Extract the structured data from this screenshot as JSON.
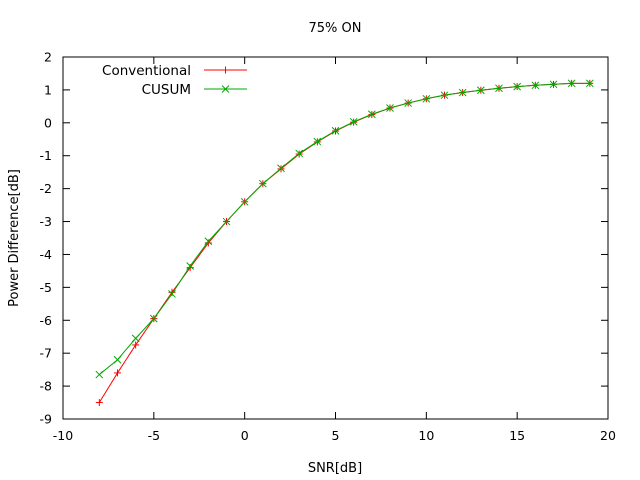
{
  "chart_data": {
    "type": "line",
    "title": "75% ON",
    "xlabel": "SNR[dB]",
    "ylabel": "Power Difference[dB]",
    "xlim": [
      -10,
      20
    ],
    "ylim": [
      -9,
      2
    ],
    "xticks": [
      -10,
      -5,
      0,
      5,
      10,
      15,
      20
    ],
    "yticks": [
      -9,
      -8,
      -7,
      -6,
      -5,
      -4,
      -3,
      -2,
      -1,
      0,
      1,
      2
    ],
    "xtick_labels": [
      "-10",
      "-5",
      "0",
      "5",
      "10",
      "15",
      "20"
    ],
    "ytick_labels": [
      "-9",
      "-8",
      "-7",
      "-6",
      "-5",
      "-4",
      "-3",
      "-2",
      "-1",
      "0",
      "1",
      "2"
    ],
    "grid": false,
    "legend_position": "top-left",
    "x": [
      -8,
      -7,
      -6,
      -5,
      -4,
      -3,
      -2,
      -1,
      0,
      1,
      2,
      3,
      4,
      5,
      6,
      7,
      8,
      9,
      10,
      11,
      12,
      13,
      14,
      15,
      16,
      17,
      18,
      19
    ],
    "series": [
      {
        "name": "Conventional",
        "color": "#ff0000",
        "marker": "plus",
        "values": [
          -8.5,
          -7.6,
          -6.75,
          -5.95,
          -5.15,
          -4.4,
          -3.65,
          -3.0,
          -2.4,
          -1.85,
          -1.4,
          -0.95,
          -0.58,
          -0.25,
          0.02,
          0.25,
          0.45,
          0.6,
          0.73,
          0.84,
          0.92,
          0.99,
          1.05,
          1.1,
          1.14,
          1.17,
          1.2,
          1.2
        ]
      },
      {
        "name": "CUSUM",
        "color": "#00aa00",
        "marker": "cross",
        "values": [
          -7.65,
          -7.2,
          -6.55,
          -5.95,
          -5.2,
          -4.35,
          -3.6,
          -3.0,
          -2.4,
          -1.85,
          -1.38,
          -0.93,
          -0.57,
          -0.24,
          0.03,
          0.26,
          0.45,
          0.6,
          0.73,
          0.84,
          0.92,
          0.99,
          1.05,
          1.1,
          1.14,
          1.17,
          1.2,
          1.2
        ]
      }
    ]
  }
}
